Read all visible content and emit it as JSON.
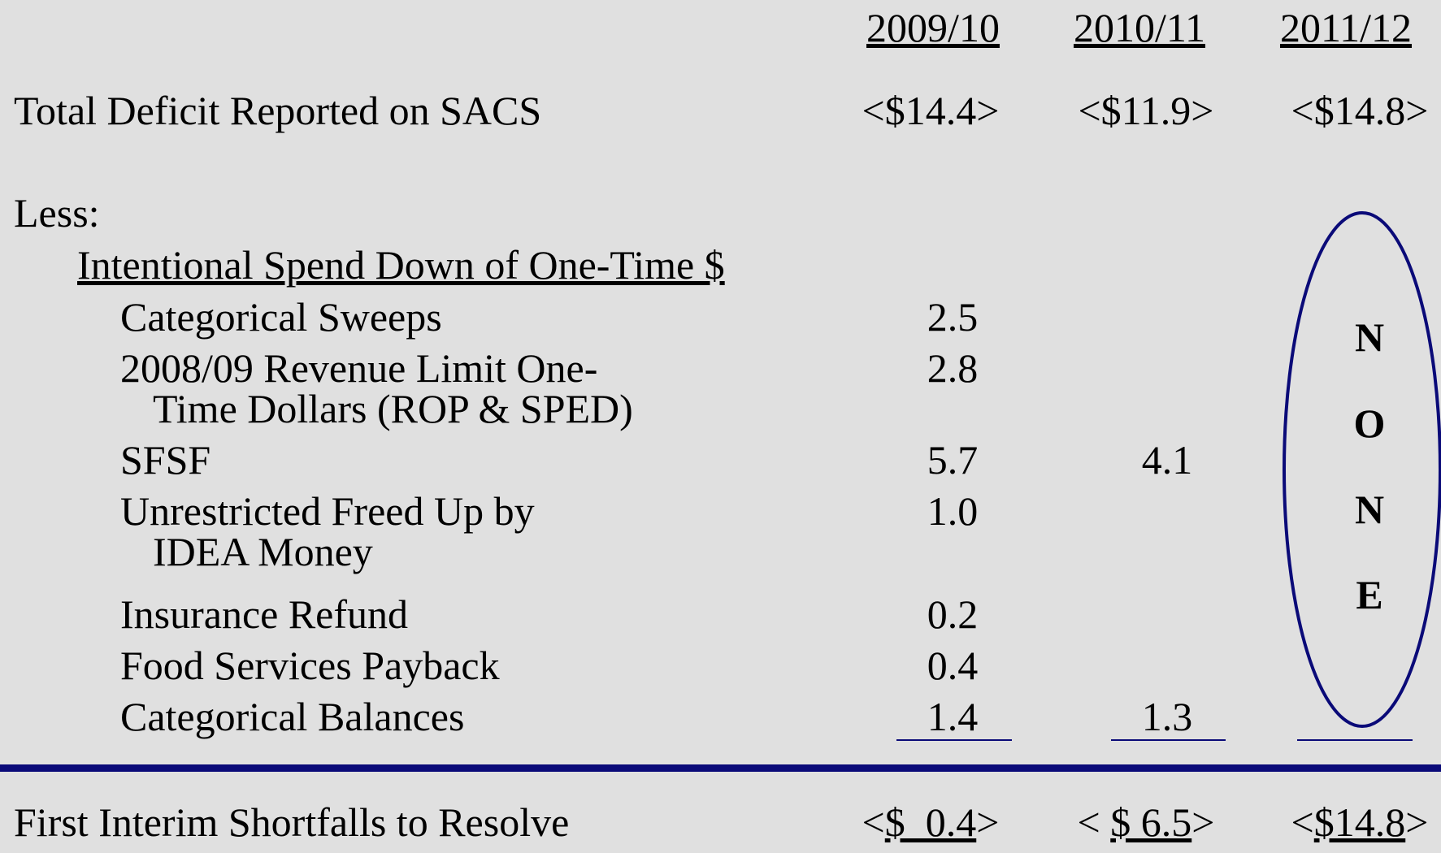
{
  "columns": [
    "2009/10",
    "2010/11",
    "2011/12"
  ],
  "total": {
    "label": "Total Deficit Reported on SACS",
    "values": [
      "<$14.4>",
      "<$11.9>",
      "<$14.8>"
    ]
  },
  "less_label": "Less:",
  "section_title": "Intentional Spend Down of One-Time $",
  "items": [
    {
      "label": [
        "Categorical Sweeps"
      ],
      "col_2009_10": "2.5"
    },
    {
      "label": [
        "2008/09 Revenue Limit One-",
        "Time Dollars (ROP & SPED)"
      ],
      "col_2009_10": "2.8"
    },
    {
      "label": [
        "SFSF"
      ],
      "col_2009_10": "5.7",
      "col_2010_11": "4.1"
    },
    {
      "label": [
        "Unrestricted Freed Up by",
        "IDEA Money"
      ],
      "col_2009_10": "1.0"
    },
    {
      "label": [
        "Insurance Refund"
      ],
      "col_2009_10": "0.2"
    },
    {
      "label": [
        "Food Services Payback"
      ],
      "col_2009_10": "0.4"
    },
    {
      "label": [
        "Categorical Balances"
      ],
      "col_2009_10": "1.4",
      "col_2010_11": "1.3"
    }
  ],
  "none_letters": [
    "N",
    "O",
    "N",
    "E"
  ],
  "footer": {
    "label": "First Interim Shortfalls to Resolve",
    "values": [
      {
        "open": "<",
        "amount": "$  0.4",
        "close": ">"
      },
      {
        "open": "< ",
        "amount": "$ 6.5",
        "close": ">"
      },
      {
        "open": "<",
        "amount": "$14.8",
        "close": ">"
      }
    ]
  }
}
